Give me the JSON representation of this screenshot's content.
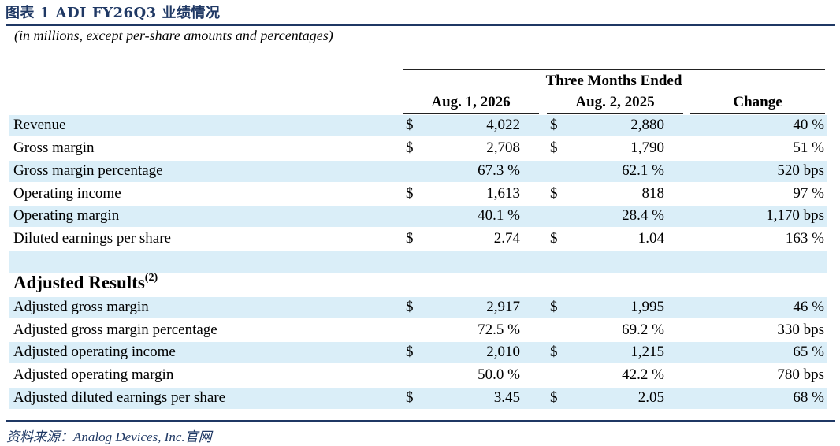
{
  "figure": {
    "title": "图表 1   ADI FY26Q3 业绩情况",
    "subtitle": "(in millions, except per-share amounts and percentages)",
    "source": "资料来源：Analog Devices, Inc.官网"
  },
  "header": {
    "group": "Three Months Ended",
    "col1": "Aug. 1, 2026",
    "col2": "Aug. 2, 2025",
    "col3": "Change"
  },
  "rows": [
    {
      "label": "Revenue",
      "d1": "$",
      "v1": "4,022",
      "d2": "$",
      "v2": "2,880",
      "change": "40 %"
    },
    {
      "label": "Gross margin",
      "d1": "$",
      "v1": "2,708",
      "d2": "$",
      "v2": "1,790",
      "change": "51 %"
    },
    {
      "label": "Gross margin percentage",
      "d1": "",
      "v1": "67.3 %",
      "d2": "",
      "v2": "62.1 %",
      "change": "520 bps"
    },
    {
      "label": "Operating income",
      "d1": "$",
      "v1": "1,613",
      "d2": "$",
      "v2": "818",
      "change": "97 %"
    },
    {
      "label": "Operating margin",
      "d1": "",
      "v1": "40.1 %",
      "d2": "",
      "v2": "28.4 %",
      "change": "1,170 bps"
    },
    {
      "label": "Diluted earnings per share",
      "d1": "$",
      "v1": "2.74",
      "d2": "$",
      "v2": "1.04",
      "change": "163 %"
    }
  ],
  "adjusted": {
    "title": "Adjusted Results",
    "note": "(2)",
    "rows": [
      {
        "label": "Adjusted gross margin",
        "d1": "$",
        "v1": "2,917",
        "d2": "$",
        "v2": "1,995",
        "change": "46 %"
      },
      {
        "label": "Adjusted gross margin percentage",
        "d1": "",
        "v1": "72.5 %",
        "d2": "",
        "v2": "69.2 %",
        "change": "330 bps"
      },
      {
        "label": "Adjusted operating income",
        "d1": "$",
        "v1": "2,010",
        "d2": "$",
        "v2": "1,215",
        "change": "65 %"
      },
      {
        "label": "Adjusted operating margin",
        "d1": "",
        "v1": "50.0 %",
        "d2": "",
        "v2": "42.2 %",
        "change": "780 bps"
      },
      {
        "label": "Adjusted diluted earnings per share",
        "d1": "$",
        "v1": "3.45",
        "d2": "$",
        "v2": "2.05",
        "change": "68 %"
      }
    ]
  },
  "colors": {
    "title": "#1F3864",
    "row_shade": "#DAEEF8",
    "rule": "#1F3864"
  }
}
